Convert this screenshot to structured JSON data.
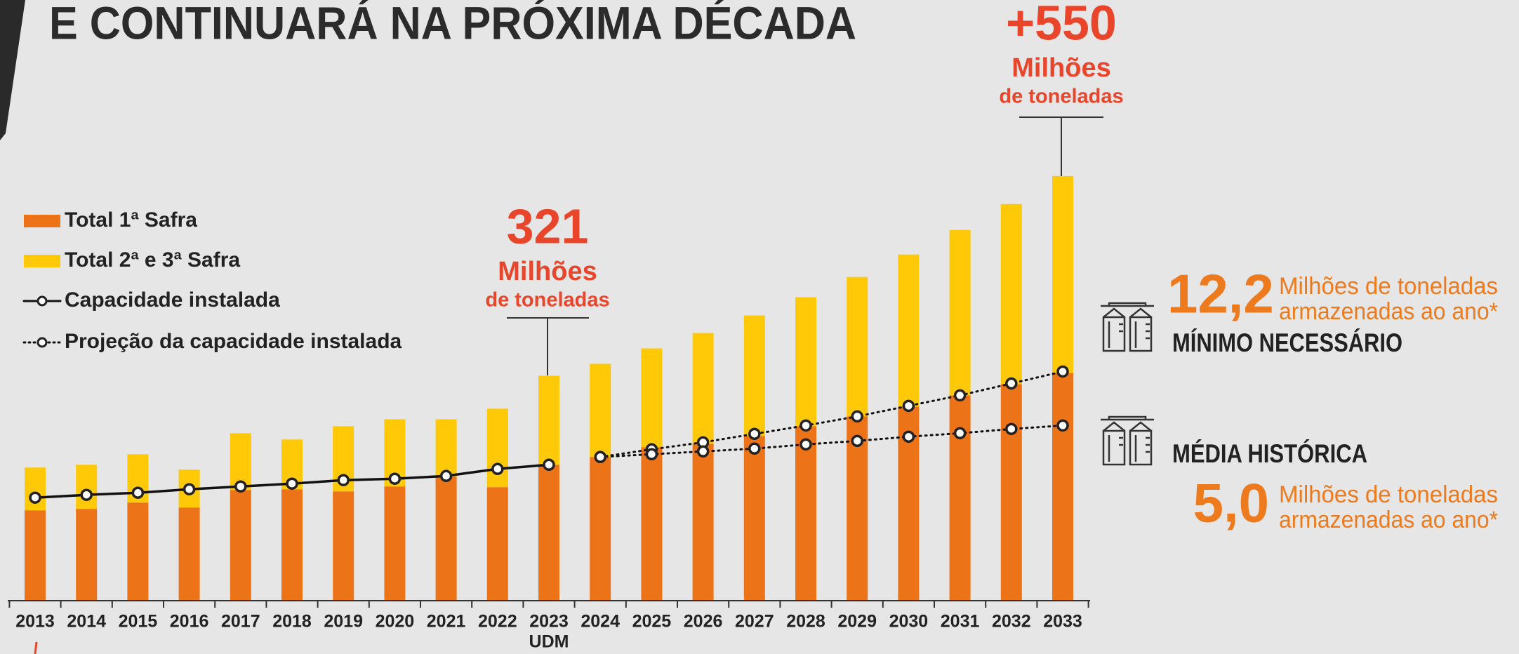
{
  "chart_data": {
    "type": "bar",
    "stacked": true,
    "title": "E CONTINUARÁ NA PRÓXIMA DÉCADA",
    "categories": [
      "2013",
      "2014",
      "2015",
      "2016",
      "2017",
      "2018",
      "2019",
      "2020",
      "2021",
      "2022",
      "2023",
      "2024",
      "2025",
      "2026",
      "2027",
      "2028",
      "2029",
      "2030",
      "2031",
      "2032",
      "2033"
    ],
    "x_sublabels": [
      null,
      null,
      null,
      null,
      null,
      null,
      null,
      null,
      null,
      null,
      "UDM",
      null,
      null,
      null,
      null,
      null,
      null,
      null,
      null,
      null,
      null
    ],
    "ylim": [
      0,
      700
    ],
    "series": [
      {
        "name": "Total 1ª Safra",
        "type": "bar",
        "color": "#ec7318",
        "values": [
          129,
          131,
          140,
          133,
          158,
          159,
          156,
          163,
          177,
          162,
          194,
          205,
          219,
          224,
          235,
          249,
          263,
          277,
          293,
          309,
          325
        ]
      },
      {
        "name": "Total 2ª e 3ª Safra",
        "type": "bar",
        "color": "#ffc907",
        "values": [
          61,
          63,
          69,
          54,
          81,
          71,
          93,
          96,
          82,
          112,
          127,
          133,
          141,
          158,
          172,
          184,
          199,
          217,
          236,
          257,
          281
        ]
      },
      {
        "name": "Capacidade instalada",
        "type": "line",
        "style": "solid",
        "color": "#111111",
        "values": [
          147,
          151,
          154,
          159,
          163,
          167,
          172,
          174,
          178,
          188,
          194,
          null,
          null,
          null,
          null,
          null,
          null,
          null,
          null,
          null,
          null
        ]
      },
      {
        "name": "Projeção da capacidade instalada",
        "type": "line",
        "style": "dotted",
        "color": "#111111",
        "values": [
          null,
          null,
          null,
          null,
          null,
          null,
          null,
          null,
          null,
          null,
          null,
          205,
          216,
          226,
          238,
          250,
          263,
          278,
          293,
          310,
          327
        ]
      },
      {
        "type": "line",
        "style": "dotted",
        "color": "#111111",
        "values": [
          null,
          null,
          null,
          null,
          null,
          null,
          null,
          null,
          null,
          null,
          null,
          205,
          209,
          213,
          217,
          223,
          228,
          234,
          239,
          245,
          250
        ]
      }
    ],
    "annotations": [
      {
        "value": "321",
        "unit": "Milhões",
        "note": "de toneladas"
      },
      {
        "value": "+550",
        "unit": "Milhões",
        "note": "de toneladas"
      }
    ],
    "side_notes": [
      {
        "value": "12,2",
        "text": [
          "Milhões de toneladas",
          "armazenadas ao ano*"
        ],
        "label": "MÍNIMO NECESSÁRIO"
      },
      {
        "value": "5,0",
        "text": [
          "Milhões de toneladas",
          "armazenadas ao ano*"
        ],
        "label": "MÉDIA HISTÓRICA"
      }
    ]
  }
}
